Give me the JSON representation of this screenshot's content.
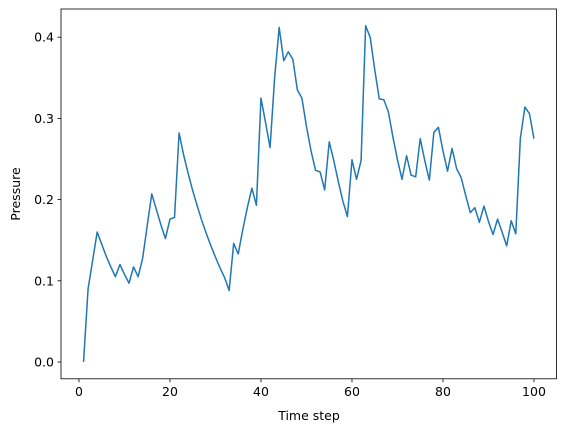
{
  "chart_data": {
    "type": "line",
    "xlabel": "Time step",
    "ylabel": "Pressure",
    "x": [
      1,
      2,
      3,
      4,
      5,
      6,
      7,
      8,
      9,
      10,
      11,
      12,
      13,
      14,
      15,
      16,
      17,
      18,
      19,
      20,
      21,
      22,
      23,
      24,
      25,
      26,
      27,
      28,
      29,
      30,
      31,
      32,
      33,
      34,
      35,
      36,
      37,
      38,
      39,
      40,
      41,
      42,
      43,
      44,
      45,
      46,
      47,
      48,
      49,
      50,
      51,
      52,
      53,
      54,
      55,
      56,
      57,
      58,
      59,
      60,
      61,
      62,
      63,
      64,
      65,
      66,
      67,
      68,
      69,
      70,
      71,
      72,
      73,
      74,
      75,
      76,
      77,
      78,
      79,
      80,
      81,
      82,
      83,
      84,
      85,
      86,
      87,
      88,
      89,
      90,
      91,
      92,
      93,
      94,
      95,
      96,
      97,
      98,
      99,
      100
    ],
    "series": [
      {
        "color": "#1f77b4",
        "values": [
          0.0,
          0.09,
          0.125,
          0.16,
          0.145,
          0.13,
          0.117,
          0.105,
          0.12,
          0.108,
          0.097,
          0.117,
          0.105,
          0.128,
          0.168,
          0.207,
          0.188,
          0.169,
          0.152,
          0.176,
          0.178,
          0.282,
          0.255,
          0.232,
          0.211,
          0.192,
          0.174,
          0.158,
          0.143,
          0.129,
          0.116,
          0.104,
          0.088,
          0.146,
          0.133,
          0.163,
          0.19,
          0.214,
          0.193,
          0.325,
          0.295,
          0.264,
          0.35,
          0.412,
          0.371,
          0.382,
          0.373,
          0.335,
          0.325,
          0.29,
          0.26,
          0.236,
          0.234,
          0.212,
          0.271,
          0.248,
          0.222,
          0.198,
          0.179,
          0.249,
          0.225,
          0.248,
          0.414,
          0.4,
          0.36,
          0.324,
          0.323,
          0.308,
          0.277,
          0.249,
          0.225,
          0.254,
          0.23,
          0.228,
          0.275,
          0.248,
          0.224,
          0.283,
          0.289,
          0.26,
          0.235,
          0.263,
          0.238,
          0.227,
          0.205,
          0.184,
          0.19,
          0.172,
          0.192,
          0.173,
          0.157,
          0.176,
          0.16,
          0.143,
          0.174,
          0.158,
          0.275,
          0.314,
          0.306,
          0.275
        ]
      }
    ],
    "xlim": [
      -3.95,
      104.95
    ],
    "xticks": [
      0,
      20,
      40,
      60,
      80,
      100
    ],
    "ylim": [
      -0.0207,
      0.4347
    ],
    "yticks": [
      {
        "value": 0,
        "label": "0.0"
      },
      0.1,
      0.2,
      0.3,
      0.4
    ]
  }
}
